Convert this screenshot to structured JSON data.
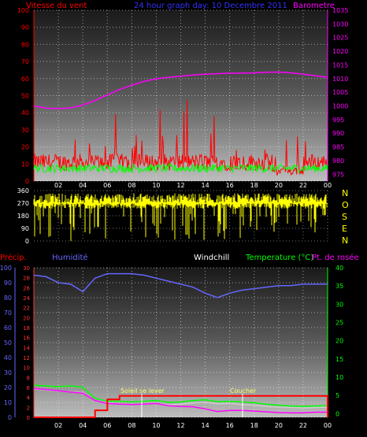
{
  "header": {
    "wind_label": "Vitesse du vent",
    "title": "24 hour graph day: 10 Decembre 2011",
    "baro_label": "Barometre"
  },
  "compass": [
    "N",
    "O",
    "S",
    "E",
    "N"
  ],
  "lower_labels": {
    "precip": "Précip.",
    "humidity": "Humidité",
    "windchill": "Windchill",
    "temperature": "Temperature (°C)",
    "dewpoint": "Pt. de rosée"
  },
  "annotations": {
    "sunrise": "Soleil se lever",
    "sunset": "Coucher"
  },
  "colors": {
    "wind": "#ff0000",
    "gust": "#00ff00",
    "baro": "#ff00ff",
    "direction": "#ffff00",
    "humidity": "#6666ff",
    "temperature": "#00ff00",
    "windchill": "#cccccc",
    "dewpoint": "#ff00ff",
    "precip": "#ff0000"
  },
  "chart_data": [
    {
      "type": "line",
      "x_ticks": [
        "02",
        "04",
        "06",
        "08",
        "10",
        "12",
        "14",
        "16",
        "18",
        "20",
        "22",
        "00"
      ],
      "left_axis": {
        "label": "Vitesse du vent",
        "ticks": [
          0,
          10,
          20,
          30,
          40,
          50,
          60,
          70,
          80,
          90,
          100
        ],
        "ylim": [
          0,
          100
        ]
      },
      "right_axis": {
        "label": "Barometre",
        "ticks": [
          975,
          980,
          985,
          990,
          995,
          1000,
          1005,
          1010,
          1015,
          1020,
          1025,
          1030,
          1035
        ],
        "ylim": [
          972.5,
          1035
        ]
      },
      "series": [
        {
          "name": "Barometre",
          "axis": "right",
          "values": [
            1000,
            999.2,
            999,
            999.3,
            1000.3,
            1002,
            1004,
            1006,
            1007.6,
            1009,
            1009.9,
            1010.5,
            1010.9,
            1011.3,
            1011.6,
            1011.8,
            1012,
            1012,
            1012.1,
            1012.3,
            1012.4,
            1012.1,
            1011.6,
            1011,
            1010.5
          ]
        }
      ],
      "note": "Wind speed (red) mostly 5-20 with gusts up to about 47; green gust trace around 5-12"
    },
    {
      "type": "line",
      "name": "wind direction",
      "x_ticks": [
        "02",
        "04",
        "06",
        "08",
        "10",
        "12",
        "14",
        "16",
        "18",
        "20",
        "22",
        "00"
      ],
      "y_ticks": [
        0,
        90,
        180,
        270,
        360
      ],
      "ylim": [
        0,
        360
      ],
      "note": "Direction mostly between 250 and 330 degrees with frequent drops toward 0"
    },
    {
      "type": "line",
      "x_ticks": [
        "02",
        "04",
        "06",
        "08",
        "10",
        "12",
        "14",
        "16",
        "18",
        "20",
        "22",
        "00"
      ],
      "humidity_axis": {
        "ticks": [
          0,
          10,
          20,
          30,
          40,
          50,
          60,
          70,
          80,
          90,
          100
        ],
        "ylim": [
          0,
          100
        ]
      },
      "precip_axis": {
        "ticks": [
          0,
          2,
          4,
          6,
          8,
          10,
          12,
          14,
          16,
          18,
          20,
          22,
          24,
          26,
          28,
          30
        ],
        "ylim": [
          0,
          30
        ]
      },
      "temp_axis": {
        "ticks": [
          0,
          5,
          10,
          15,
          20,
          25,
          30,
          35,
          40
        ],
        "ylim": [
          -1,
          40
        ]
      },
      "series": [
        {
          "name": "Humidité",
          "axis": "humidity",
          "values": [
            95,
            94,
            90,
            89,
            84,
            93,
            96,
            96,
            96,
            95,
            93,
            91,
            89,
            87,
            83,
            80,
            83,
            85,
            86,
            87,
            88,
            88,
            89,
            89,
            89
          ]
        },
        {
          "name": "Temperature (°C)",
          "axis": "temp",
          "values": [
            7.8,
            7.6,
            7.4,
            7.6,
            7.2,
            4.2,
            3.4,
            3.4,
            3.2,
            3.4,
            3.6,
            3.1,
            3.2,
            3.6,
            3.8,
            3.3,
            3.4,
            3.2,
            3.0,
            2.6,
            2.3,
            2.1,
            2.0,
            2.1,
            2.2
          ]
        },
        {
          "name": "Windchill",
          "axis": "temp",
          "values": [
            6.8,
            6.5,
            6.2,
            6.0,
            5.8,
            3.6,
            3.0,
            2.6,
            2.5,
            2.6,
            2.8,
            2.4,
            2.6,
            2.9,
            3.1,
            2.7,
            2.8,
            2.5,
            2.3,
            2.0,
            1.8,
            1.7,
            1.6,
            1.7,
            1.8
          ]
        },
        {
          "name": "Pt. de rosée",
          "axis": "temp",
          "values": [
            6.9,
            6.6,
            6.3,
            5.9,
            5.6,
            3.6,
            2.8,
            2.6,
            2.5,
            2.6,
            2.8,
            2.2,
            2.0,
            1.9,
            1.3,
            0.6,
            0.9,
            0.9,
            0.7,
            0.5,
            0.3,
            0.2,
            0.2,
            0.4,
            0.4
          ]
        },
        {
          "name": "Précip.",
          "axis": "precip",
          "values": [
            0,
            0,
            0,
            0,
            0,
            1.4,
            3.6,
            4.3,
            4.3,
            4.3,
            4.3,
            4.3,
            4.3,
            4.3,
            4.3,
            4.3,
            4.3,
            4.3,
            4.3,
            4.3,
            4.3,
            4.3,
            4.3,
            4.3,
            0
          ]
        }
      ]
    }
  ]
}
